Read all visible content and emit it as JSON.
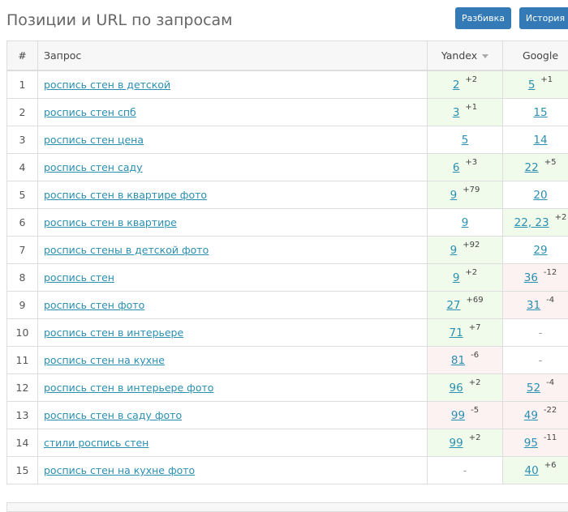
{
  "header": {
    "title": "Позиции и URL по запросам",
    "buttons": [
      "Разбивка",
      "История"
    ]
  },
  "table": {
    "columns": [
      "#",
      "Запрос",
      "Yandex",
      "Google"
    ],
    "rows": [
      {
        "num": "1",
        "query": "роспись стен в детской",
        "yandex": {
          "pos": "2",
          "delta": "+2"
        },
        "google": {
          "pos": "5",
          "delta": "+1"
        }
      },
      {
        "num": "2",
        "query": "роспись стен спб",
        "yandex": {
          "pos": "3",
          "delta": "+1"
        },
        "google": {
          "pos": "15"
        }
      },
      {
        "num": "3",
        "query": "роспись стен цена",
        "yandex": {
          "pos": "5"
        },
        "google": {
          "pos": "14"
        }
      },
      {
        "num": "4",
        "query": "роспись стен саду",
        "yandex": {
          "pos": "6",
          "delta": "+3"
        },
        "google": {
          "pos": "22",
          "delta": "+5"
        }
      },
      {
        "num": "5",
        "query": "роспись стен в квартире фото",
        "yandex": {
          "pos": "9",
          "delta": "+79"
        },
        "google": {
          "pos": "20"
        }
      },
      {
        "num": "6",
        "query": "роспись стен в квартире",
        "yandex": {
          "pos": "9"
        },
        "google": {
          "pos": "22, 23",
          "delta": "+2"
        }
      },
      {
        "num": "7",
        "query": "роспись стены в детской фото",
        "yandex": {
          "pos": "9",
          "delta": "+92"
        },
        "google": {
          "pos": "29"
        }
      },
      {
        "num": "8",
        "query": "роспись стен",
        "yandex": {
          "pos": "9",
          "delta": "+2"
        },
        "google": {
          "pos": "36",
          "delta": "-12"
        }
      },
      {
        "num": "9",
        "query": "роспись стен фото",
        "yandex": {
          "pos": "27",
          "delta": "+69"
        },
        "google": {
          "pos": "31",
          "delta": "-4"
        }
      },
      {
        "num": "10",
        "query": "роспись стен в интерьере",
        "yandex": {
          "pos": "71",
          "delta": "+7"
        },
        "google": {
          "pos": "-"
        }
      },
      {
        "num": "11",
        "query": "роспись стен на кухне",
        "yandex": {
          "pos": "81",
          "delta": "-6"
        },
        "google": {
          "pos": "-"
        }
      },
      {
        "num": "12",
        "query": "роспись стен в интерьере фото",
        "yandex": {
          "pos": "96",
          "delta": "+2"
        },
        "google": {
          "pos": "52",
          "delta": "-4"
        }
      },
      {
        "num": "13",
        "query": "роспись стен в саду фото",
        "yandex": {
          "pos": "99",
          "delta": "-5"
        },
        "google": {
          "pos": "49",
          "delta": "-22"
        }
      },
      {
        "num": "14",
        "query": "стили роспись стен",
        "yandex": {
          "pos": "99",
          "delta": "+2"
        },
        "google": {
          "pos": "95",
          "delta": "-11"
        }
      },
      {
        "num": "15",
        "query": "роспись стен на кухне фото",
        "yandex": {
          "pos": "-"
        },
        "google": {
          "pos": "40",
          "delta": "+6"
        }
      }
    ]
  }
}
